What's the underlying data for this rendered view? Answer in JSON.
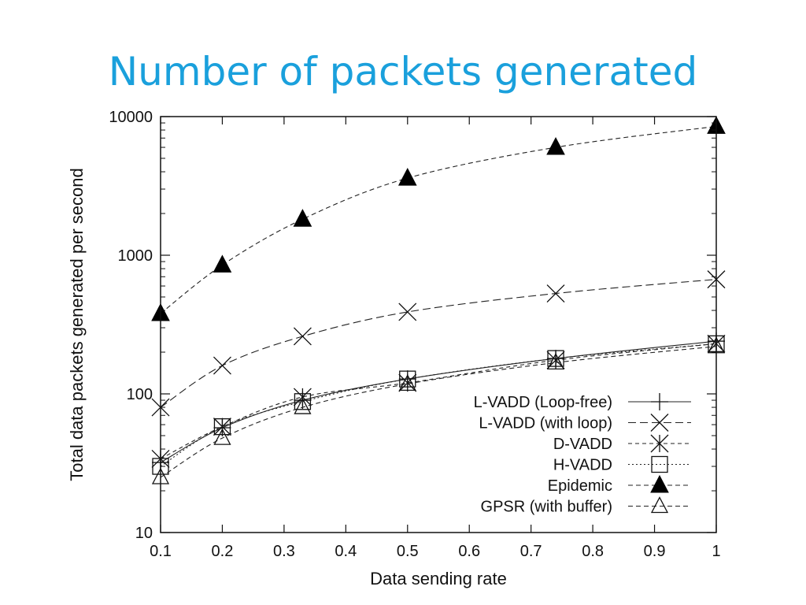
{
  "slide": {
    "title": "Number of packets generated"
  },
  "chart_data": {
    "type": "line",
    "title": "",
    "xlabel": "Data sending rate",
    "ylabel": "Total data packets generated per second",
    "x": [
      0.1,
      0.2,
      0.33,
      0.5,
      0.74,
      1.0
    ],
    "xlim": [
      0.1,
      1.0
    ],
    "ylim": [
      10,
      10000
    ],
    "yscale": "log",
    "xticks": [
      "0.1",
      "0.2",
      "0.3",
      "0.4",
      "0.5",
      "0.6",
      "0.7",
      "0.8",
      "0.9",
      "1"
    ],
    "yticks": [
      "10",
      "100",
      "1000",
      "10000"
    ],
    "legend_position": "bottom-right",
    "series": [
      {
        "name": "L-VADD (Loop-free)",
        "marker": "plus",
        "dash": "none",
        "values": [
          32,
          57,
          90,
          128,
          180,
          240
        ]
      },
      {
        "name": "L-VADD (with loop)",
        "marker": "x",
        "dash": "long-dash",
        "values": [
          80,
          160,
          260,
          390,
          530,
          670
        ]
      },
      {
        "name": "D-VADD",
        "marker": "asterisk",
        "dash": "short-dash",
        "values": [
          34,
          58,
          95,
          120,
          175,
          230
        ]
      },
      {
        "name": "H-VADD",
        "marker": "square",
        "dash": "dotted",
        "values": [
          30,
          58,
          88,
          128,
          180,
          230
        ]
      },
      {
        "name": "Epidemic",
        "marker": "filled-triangle",
        "dash": "dashed",
        "values": [
          380,
          850,
          1820,
          3600,
          6000,
          8500
        ]
      },
      {
        "name": "GPSR (with buffer)",
        "marker": "open-triangle",
        "dash": "dashed",
        "values": [
          25,
          48,
          80,
          118,
          168,
          220
        ]
      }
    ]
  }
}
